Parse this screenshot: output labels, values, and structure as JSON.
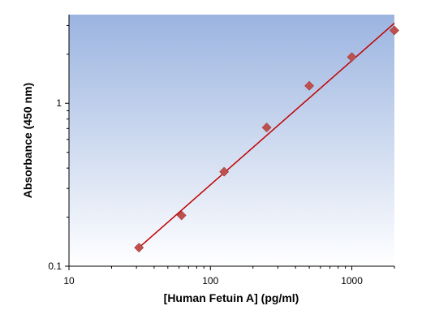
{
  "chart_data": {
    "type": "scatter",
    "title": "",
    "xlabel": "[Human Fetuin A] (pg/ml)",
    "ylabel": "Absorbance (450 nm)",
    "xscale": "log",
    "yscale": "log",
    "xlim": [
      10,
      2000
    ],
    "ylim": [
      0.1,
      3.5
    ],
    "xticks": [
      10,
      100,
      1000
    ],
    "xtick_labels": [
      "10",
      "100",
      "1000"
    ],
    "yticks": [
      0.1,
      1
    ],
    "ytick_labels": [
      "0.1",
      "1"
    ],
    "grid": false,
    "legend": "none",
    "points": {
      "x": [
        31.25,
        62.5,
        125,
        250,
        500,
        1000,
        2000
      ],
      "y": [
        0.13,
        0.205,
        0.38,
        0.71,
        1.28,
        1.92,
        2.8
      ]
    },
    "fit_line": {
      "x": [
        31.25,
        2000
      ],
      "y": [
        0.13,
        3.1
      ]
    },
    "colors": {
      "background_top": "#9bb4e0",
      "background_bottom": "#ffffff",
      "marker": "#c0504d",
      "fit_line": "#c00000",
      "axis": "#000000"
    }
  }
}
